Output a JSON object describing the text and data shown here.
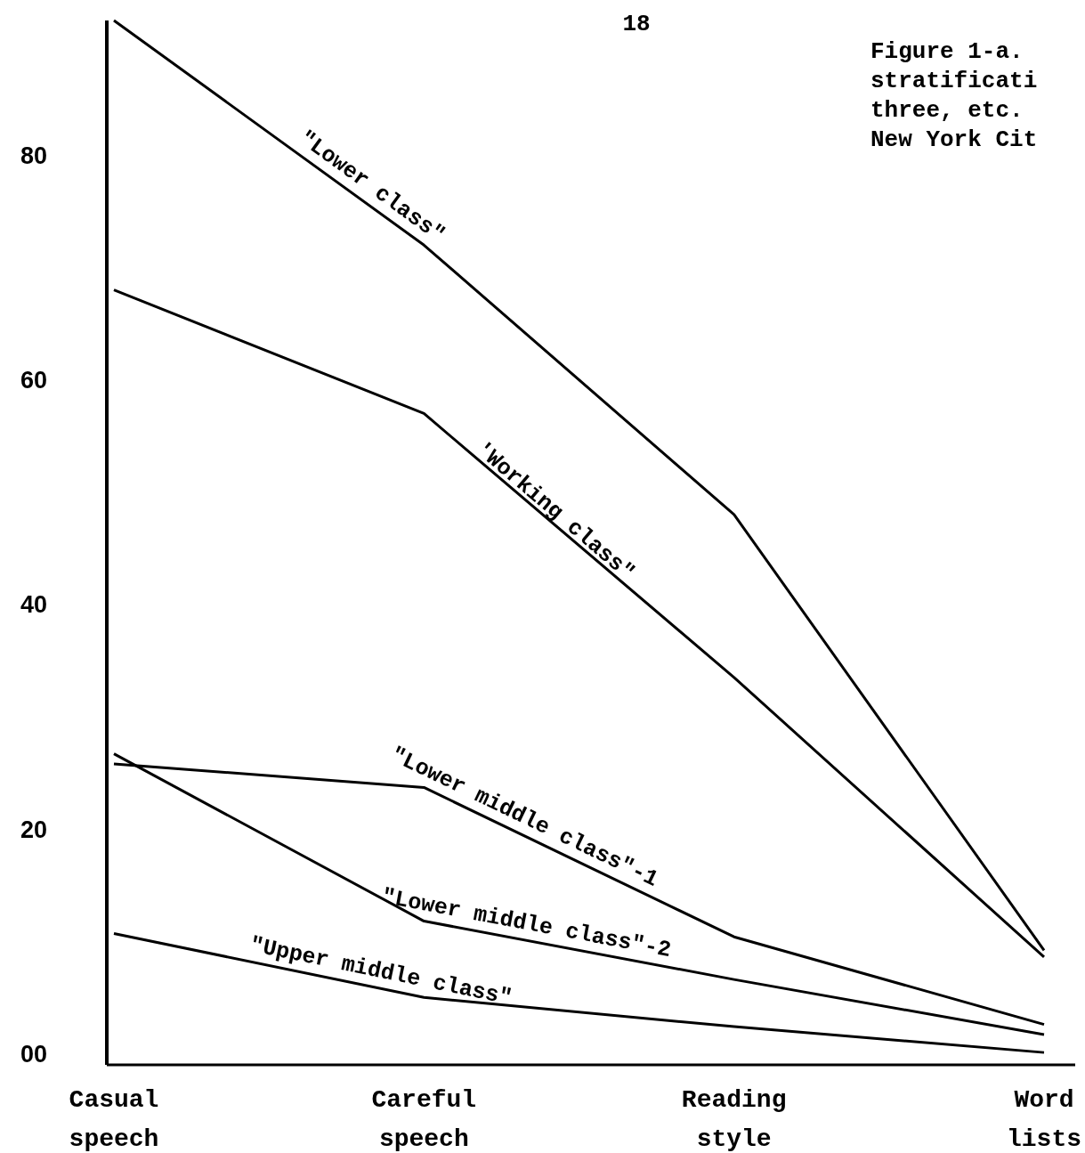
{
  "chart_data": {
    "type": "line",
    "title": "Figure 1-a.",
    "annotations": [
      "18",
      "stratificati",
      "three, etc.",
      "New York Cit"
    ],
    "categories": [
      "Casual speech",
      "Careful speech",
      "Reading style",
      "Word lists"
    ],
    "ylim": [
      -1,
      92
    ],
    "yticks": [
      {
        "value": 0,
        "label": "00"
      },
      20,
      40,
      60,
      80
    ],
    "grid": false,
    "legend": false,
    "marker": "none",
    "line_style": "solid",
    "series": [
      {
        "name": "\"Lower class\"",
        "color": "#000000",
        "values": [
          92,
          72,
          48,
          9.2
        ]
      },
      {
        "name": "'Working class\"",
        "color": "#000000",
        "values": [
          68,
          57,
          33.5,
          8.6
        ]
      },
      {
        "name": "\"Lower middle class\"-1",
        "color": "#000000",
        "values": [
          25.8,
          23.7,
          10.4,
          2.6
        ]
      },
      {
        "name": "\"Lower middle class\"-2",
        "color": "#000000",
        "values": [
          26.7,
          11.8,
          6.6,
          1.7
        ]
      },
      {
        "name": "\"Upper middle class\"",
        "color": "#000000",
        "values": [
          10.7,
          5,
          2.4,
          0.1
        ]
      }
    ]
  }
}
